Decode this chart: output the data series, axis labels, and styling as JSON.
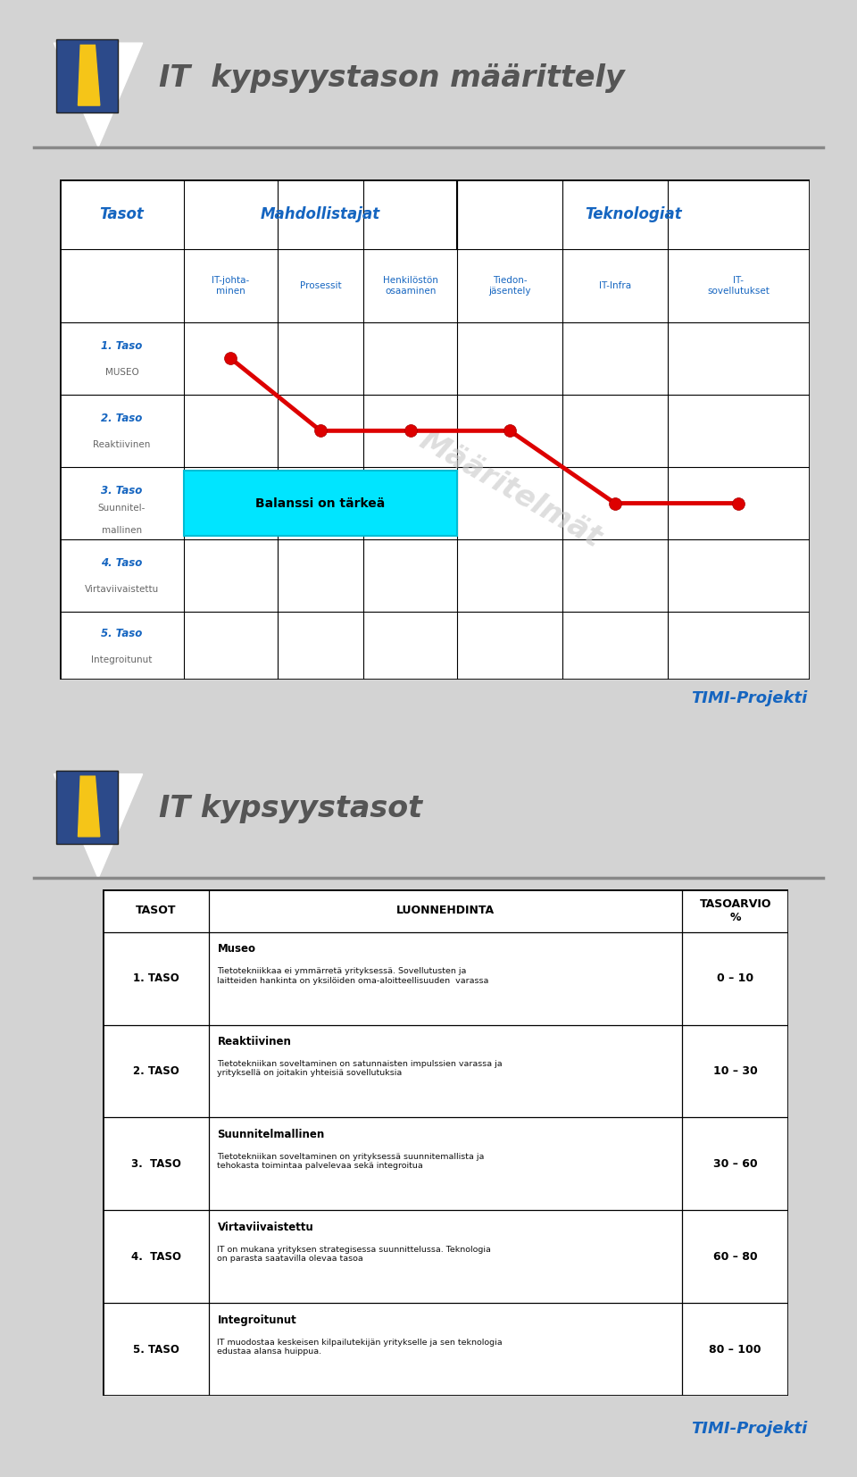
{
  "slide1": {
    "title": "IT  kypsyystason määrittely",
    "bg_color": "#d3d3d3",
    "panel_bg": "#e8e8e8",
    "header_color": "#1a5276",
    "row_labels_line1": [
      "1. Taso",
      "2. Taso",
      "3. Taso",
      "4. Taso",
      "5. Taso"
    ],
    "row_labels_line2": [
      "MUSEO",
      "Reaktiivinen",
      "Suunnitel-\nmallinen",
      "Virtaviivaistettu",
      "Integroitunut"
    ],
    "col_headers": [
      "IT-johta-\nminen",
      "Prosessit",
      "Henkilöstön\nosaaminen",
      "Tiedon-\njäsentely",
      "IT-Infra",
      "IT-\nsovellutukset"
    ],
    "group_headers": [
      "Tasot",
      "Mahdollistajat",
      "Teknologiat"
    ],
    "annotation": "Balanssi on tärkeä",
    "watermark": "Määritelmät",
    "timi_color": "#1565c0",
    "timi_label": "TIMI-Projekti",
    "line_col_indices": [
      0,
      1,
      2,
      3,
      4,
      5
    ],
    "line_row_indices": [
      0,
      1,
      1,
      1,
      2,
      2
    ]
  },
  "slide2": {
    "title": "IT kypsyystasot",
    "bg_color": "#d3d3d3",
    "timi_color": "#1565c0",
    "timi_label": "TIMI-Projekti",
    "table_headers": [
      "TASOT",
      "LUONNEHDINTA",
      "TASOARVIO\n%"
    ],
    "rows": [
      {
        "taso": "1. TASO",
        "title": "Museo",
        "desc": "Tietotekniikkaa ei ymmärretä yrityksessä. Sovellutusten ja\nlaitteiden hankinta on yksilöiden oma-aloitteellisuuden  varassa",
        "score": "0 – 10"
      },
      {
        "taso": "2. TASO",
        "title": "Reaktiivinen",
        "desc": "Tietotekniikan soveltaminen on satunnaisten impulssien varassa ja\nyrityksellä on joitakin yhteisiä sovellutuksia",
        "score": "10 – 30"
      },
      {
        "taso": "3.  TASO",
        "title": "Suunnitelmallinen",
        "desc": "Tietotekniikan soveltaminen on yrityksessä suunnitemallista ja\ntehokasta toimintaa palvelevaa sekä integroitua",
        "score": "30 – 60"
      },
      {
        "taso": "4.  TASO",
        "title": "Virtaviivaistettu",
        "desc": "IT on mukana yrityksen strategisessa suunnittelussa. Teknologia\non parasta saatavilla olevaa tasoa",
        "score": "60 – 80"
      },
      {
        "taso": "5. TASO",
        "title": "Integroitunut",
        "desc": "IT muodostaa keskeisen kilpailutekijän yritykselle ja sen teknologia\nedustaa alansa huippua.",
        "score": "80 – 100"
      }
    ]
  }
}
